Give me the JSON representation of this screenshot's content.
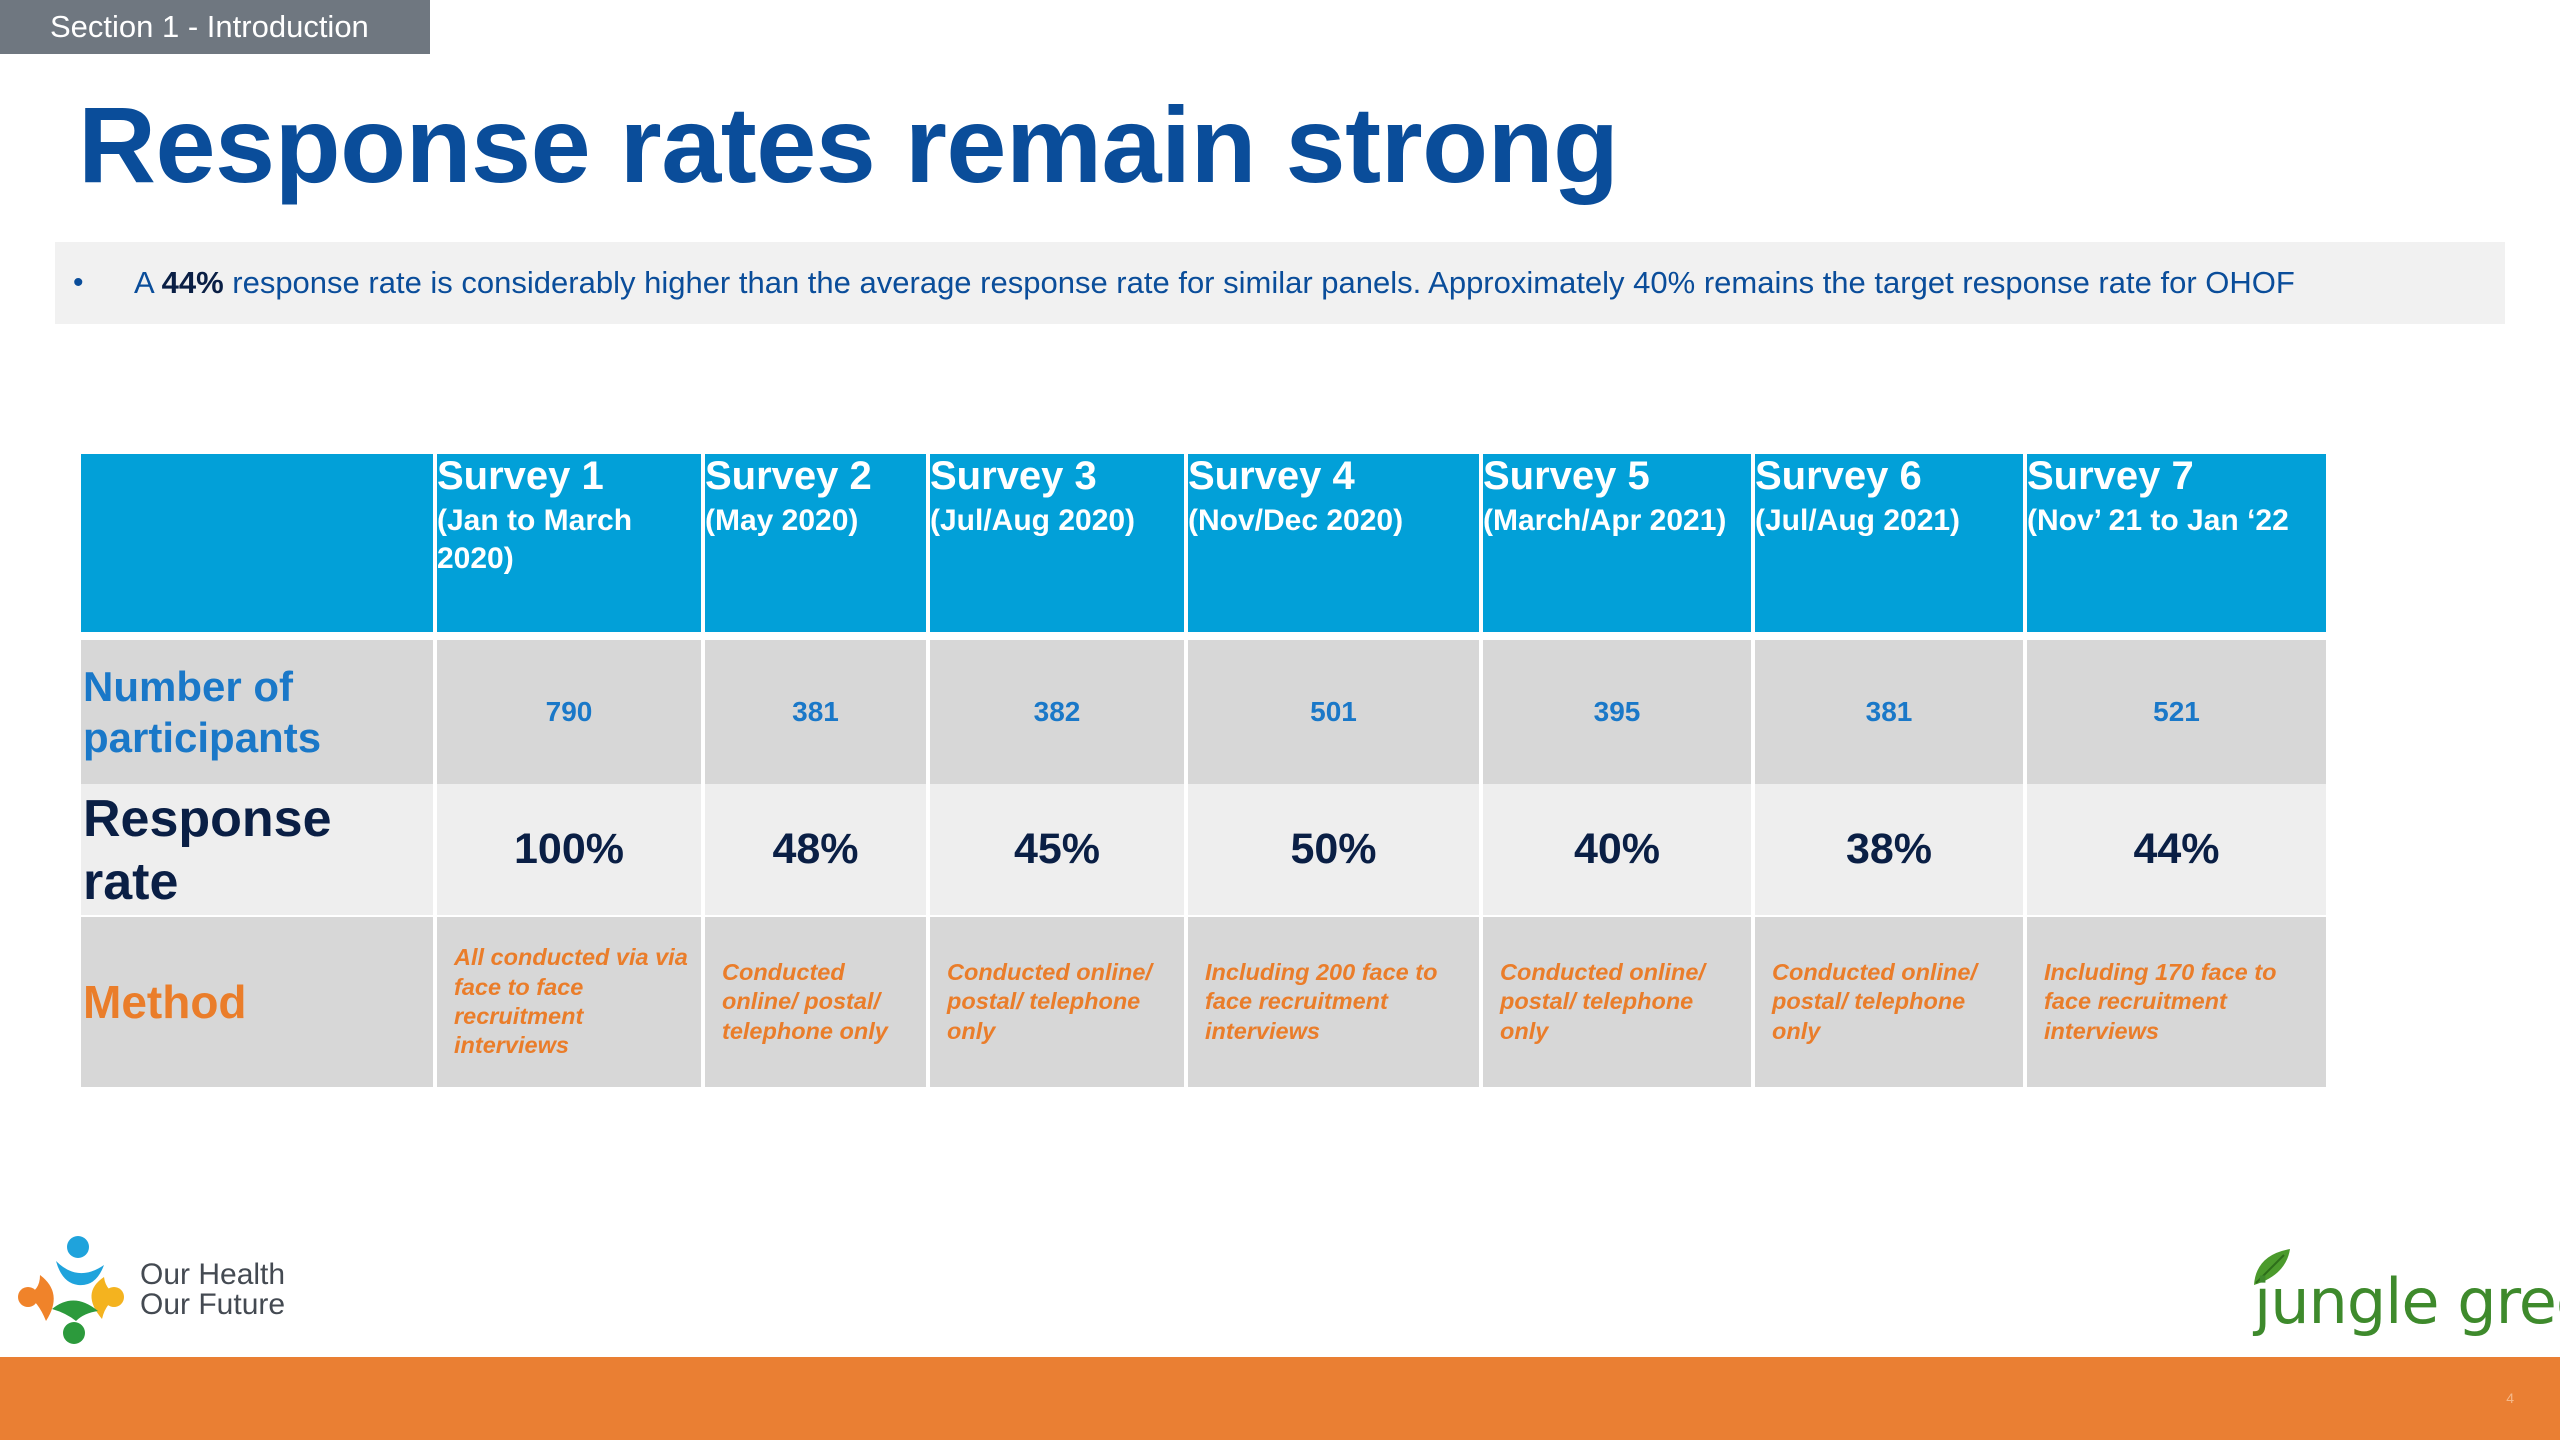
{
  "section_tab": "Section 1 - Introduction",
  "title": "Response rates remain strong",
  "bullet": {
    "marker": "•",
    "prefix": "A ",
    "highlight": "44%",
    "rest": " response rate is considerably higher than the average response rate for similar panels. Approximately 40% remains the target response rate for OHOF"
  },
  "table": {
    "surveys": [
      {
        "title": "Survey 1",
        "date": "(Jan to March 2020)",
        "participants": "790",
        "rate": "100%",
        "method": "All conducted via via face to face recruitment interviews"
      },
      {
        "title": "Survey 2",
        "date": "(May 2020)",
        "participants": "381",
        "rate": "48%",
        "method": "Conducted online/ postal/ telephone only"
      },
      {
        "title": "Survey 3",
        "date": "(Jul/Aug 2020)",
        "participants": "382",
        "rate": "45%",
        "method": "Conducted online/ postal/ telephone only"
      },
      {
        "title": "Survey 4",
        "date": "(Nov/Dec 2020)",
        "participants": "501",
        "rate": "50%",
        "method": "Including 200 face to face recruitment interviews"
      },
      {
        "title": "Survey 5",
        "date": "(March/Apr 2021)",
        "participants": "395",
        "rate": "40%",
        "method": "Conducted online/ postal/ telephone only"
      },
      {
        "title": "Survey 6",
        "date": "(Jul/Aug 2021)",
        "participants": "381",
        "rate": "38%",
        "method": "Conducted online/ postal/ telephone only"
      },
      {
        "title": "Survey 7",
        "date": "(Nov’ 21 to Jan ‘22",
        "participants": "521",
        "rate": "44%",
        "method": "Including 170 face to face recruitment interviews"
      }
    ],
    "row_labels": {
      "participants": "Number of participants",
      "rate": "Response rate",
      "method": "Method"
    }
  },
  "logos": {
    "ohof_line1": "Our Health",
    "ohof_line2": "Our Future",
    "jungle_green": "jungle green"
  },
  "colors": {
    "title_blue": "#0a4d9a",
    "header_cyan": "#02a0d8",
    "method_orange": "#ea7d2a",
    "footer_orange": "#ea7f33",
    "logo_green": "#3e8a2c"
  }
}
